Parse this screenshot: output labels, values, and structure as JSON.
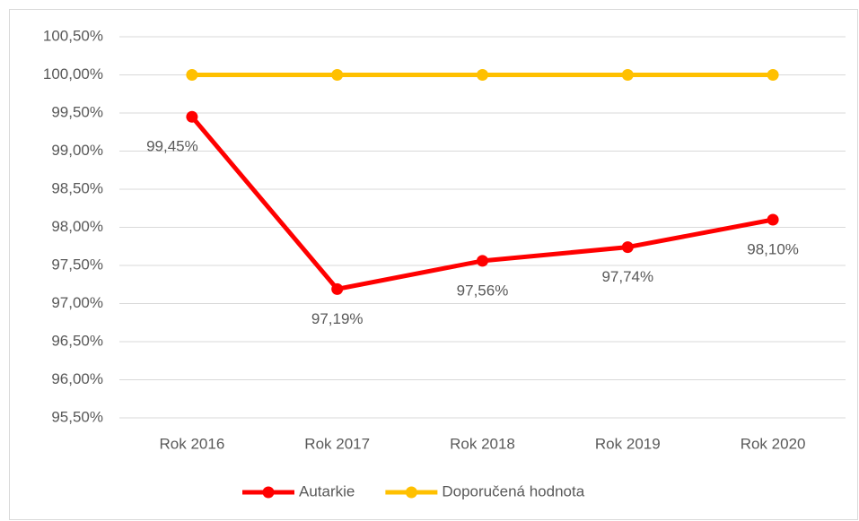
{
  "chart_data": {
    "type": "line",
    "categories": [
      "Rok 2016",
      "Rok 2017",
      "Rok 2018",
      "Rok 2019",
      "Rok 2020"
    ],
    "series": [
      {
        "name": "Autarkie",
        "color": "#ff0000",
        "values": [
          99.45,
          97.19,
          97.56,
          97.74,
          98.1
        ],
        "value_labels": [
          "99,45%",
          "97,19%",
          "97,56%",
          "97,74%",
          "98,10%"
        ]
      },
      {
        "name": "Doporučená hodnota",
        "color": "#ffc000",
        "values": [
          100,
          100,
          100,
          100,
          100
        ]
      }
    ],
    "ylim": [
      95.5,
      100.5
    ],
    "yticks": [
      {
        "value": 95.5,
        "label": "95,50%"
      },
      {
        "value": 96,
        "label": "96,00%"
      },
      {
        "value": 96.5,
        "label": "96,50%"
      },
      {
        "value": 97,
        "label": "97,00%"
      },
      {
        "value": 97.5,
        "label": "97,50%"
      },
      {
        "value": 98,
        "label": "98,00%"
      },
      {
        "value": 98.5,
        "label": "98,50%"
      },
      {
        "value": 99,
        "label": "99,00%"
      },
      {
        "value": 99.5,
        "label": "99,50%"
      },
      {
        "value": 100,
        "label": "100,00%"
      },
      {
        "value": 100.5,
        "label": "100,50%"
      }
    ],
    "grid": true,
    "legend": "bottom"
  }
}
